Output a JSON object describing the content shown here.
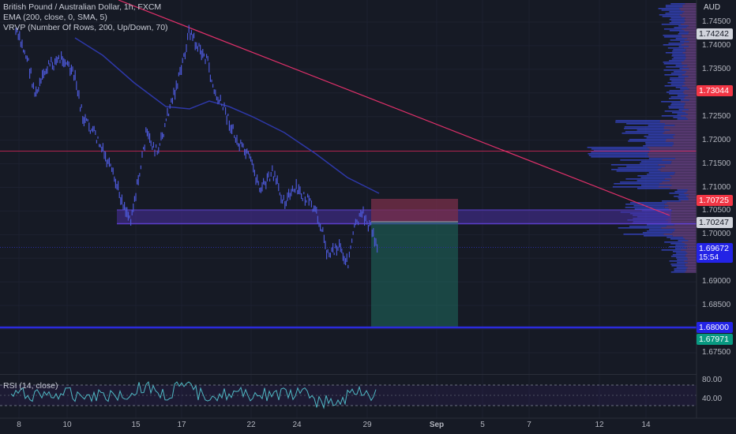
{
  "legend": {
    "symbol": "British Pound / Australian Dollar, 1h, FXCM",
    "ema": "EMA (200, close, 0, SMA, 5)",
    "vrvp": "VRVP (Number Of Rows, 200, Up/Down, 70)",
    "rsi": "RSI (14, close)"
  },
  "currency": "AUD",
  "price_axis": {
    "ticks": [
      "1.74500",
      "1.74000",
      "1.73500",
      "1.73000",
      "1.72500",
      "1.72000",
      "1.71500",
      "1.71000",
      "1.70500",
      "1.70000",
      "1.69500",
      "1.69000",
      "1.68500",
      "1.68000",
      "1.67500"
    ],
    "range": [
      1.6725,
      1.7475
    ]
  },
  "price_labels": [
    {
      "name": "price-label-1-74242",
      "text": "1.74242",
      "bg": "#d1d4dc",
      "fg": "#131722"
    },
    {
      "name": "price-label-1-73044",
      "text": "1.73044",
      "bg": "#f23645",
      "fg": "#ffffff"
    },
    {
      "name": "price-label-1-70725",
      "text": "1.70725",
      "bg": "#f23645",
      "fg": "#ffffff"
    },
    {
      "name": "price-label-1-70247",
      "text": "1.70247",
      "bg": "#d1d4dc",
      "fg": "#131722"
    },
    {
      "name": "price-label-current",
      "text": "1.69672",
      "bg": "#2323e6",
      "fg": "#ffffff"
    },
    {
      "name": "price-label-1-68000",
      "text": "1.68000",
      "bg": "#2323e6",
      "fg": "#ffffff"
    },
    {
      "name": "price-label-1-67971",
      "text": "1.67971",
      "bg": "#089981",
      "fg": "#ffffff"
    }
  ],
  "countdown": "15:54",
  "rsi_axis": {
    "ticks": [
      "80.00",
      "40.00"
    ],
    "levels": [
      80,
      40
    ]
  },
  "time_axis": {
    "ticks": [
      "8",
      "10",
      "15",
      "17",
      "22",
      "24",
      "29",
      "Sep",
      "5",
      "7",
      "12",
      "14"
    ]
  },
  "colors": {
    "background": "#161a25",
    "candle": "#4c58d6",
    "ema": "#2e38a8",
    "trendline": "#e0306a",
    "horizontal_line": "#b0244e",
    "zone_fill": "#4a30a0",
    "support_line": "#2b2bdd",
    "rsi": "#4fb8c4",
    "profit": "#1f6b5e",
    "loss": "#7a2f4a"
  }
}
